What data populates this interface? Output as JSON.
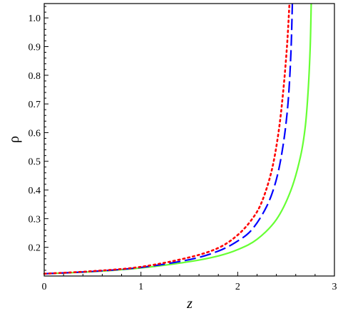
{
  "chart_data": {
    "type": "line",
    "xlabel": "z",
    "ylabel": "ρ",
    "xlim": [
      0,
      3
    ],
    "ylim": [
      0.1,
      1.05
    ],
    "grid": false,
    "legend": "none",
    "x_ticks": [
      0,
      1,
      2,
      3
    ],
    "x_tick_labels": [
      "0",
      "1",
      "2",
      "3"
    ],
    "y_ticks": [
      0.2,
      0.3,
      0.4,
      0.5,
      0.6,
      0.7,
      0.8,
      0.9,
      1.0
    ],
    "y_tick_labels": [
      "0.2",
      "0.3",
      "0.4",
      "0.5",
      "0.6",
      "0.7",
      "0.8",
      "0.9",
      "1.0"
    ],
    "series": [
      {
        "color": "#ff0000",
        "style": "dotted",
        "points": [
          [
            0,
            0.108
          ],
          [
            0.5,
            0.117
          ],
          [
            1.0,
            0.132
          ],
          [
            1.5,
            0.165
          ],
          [
            1.8,
            0.198
          ],
          [
            2.0,
            0.243
          ],
          [
            2.15,
            0.299
          ],
          [
            2.25,
            0.359
          ],
          [
            2.35,
            0.466
          ],
          [
            2.42,
            0.596
          ],
          [
            2.47,
            0.742
          ],
          [
            2.51,
            0.903
          ],
          [
            2.535,
            1.05
          ]
        ]
      },
      {
        "color": "#0000ff",
        "style": "dashed",
        "points": [
          [
            0,
            0.108
          ],
          [
            0.5,
            0.116
          ],
          [
            1.0,
            0.13
          ],
          [
            1.5,
            0.157
          ],
          [
            1.8,
            0.187
          ],
          [
            2.0,
            0.222
          ],
          [
            2.15,
            0.263
          ],
          [
            2.3,
            0.343
          ],
          [
            2.4,
            0.437
          ],
          [
            2.47,
            0.557
          ],
          [
            2.52,
            0.702
          ],
          [
            2.55,
            0.877
          ],
          [
            2.565,
            1.05
          ]
        ]
      },
      {
        "color": "#66ff33",
        "style": "solid",
        "points": [
          [
            0,
            0.108
          ],
          [
            0.5,
            0.115
          ],
          [
            1.0,
            0.128
          ],
          [
            1.5,
            0.15
          ],
          [
            1.8,
            0.17
          ],
          [
            2.0,
            0.192
          ],
          [
            2.2,
            0.228
          ],
          [
            2.4,
            0.297
          ],
          [
            2.55,
            0.399
          ],
          [
            2.65,
            0.518
          ],
          [
            2.7,
            0.625
          ],
          [
            2.73,
            0.756
          ],
          [
            2.75,
            0.903
          ],
          [
            2.76,
            1.05
          ]
        ]
      }
    ]
  }
}
